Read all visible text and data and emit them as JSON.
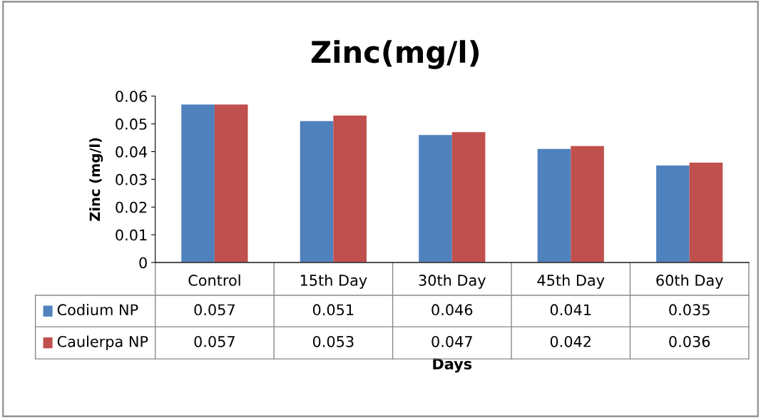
{
  "chart_data": {
    "type": "bar",
    "title": "Zinc(mg/l)",
    "xlabel": "Days",
    "ylabel": "Zinc (mg/l)",
    "categories": [
      "Control",
      "15th Day",
      "30th Day",
      "45th Day",
      "60th Day"
    ],
    "series": [
      {
        "name": "Codium NP",
        "color": "#4f81bd",
        "values": [
          0.057,
          0.051,
          0.046,
          0.041,
          0.035
        ]
      },
      {
        "name": "Caulerpa NP",
        "color": "#c0504d",
        "values": [
          0.057,
          0.053,
          0.047,
          0.042,
          0.036
        ]
      }
    ],
    "ylim": [
      0,
      0.06
    ],
    "yticks": [
      0,
      0.01,
      0.02,
      0.03,
      0.04,
      0.05,
      0.06
    ],
    "grid": false,
    "legend": "bottom",
    "data_labels": true
  }
}
